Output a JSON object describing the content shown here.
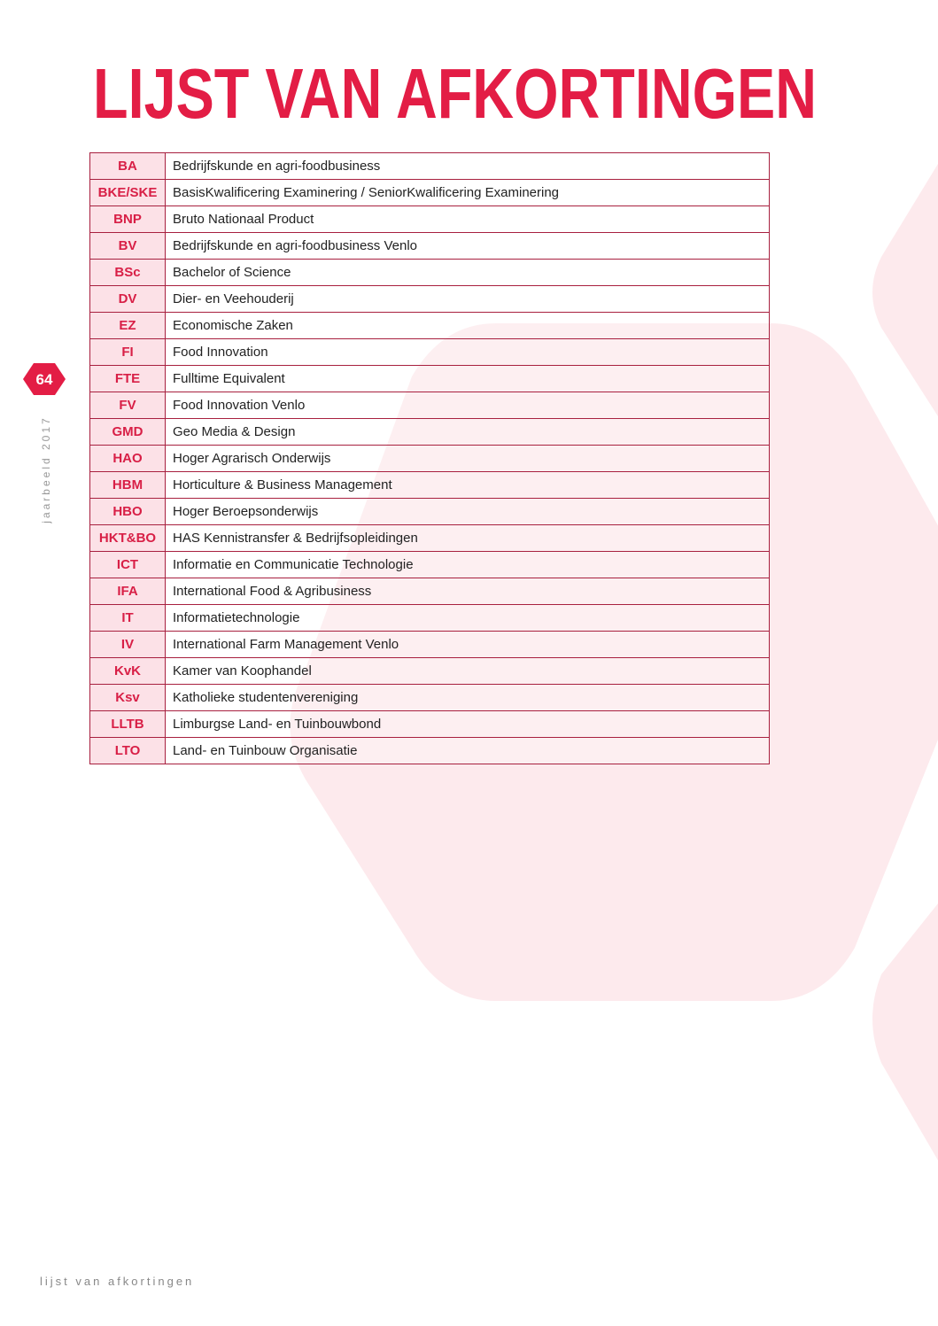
{
  "header": {
    "title": "LIJST VAN AFKORTINGEN"
  },
  "page_number": "64",
  "side_text": "jaarbeeld 2017",
  "footer": "lijst van afkortingen",
  "table": {
    "rows": [
      [
        "BA",
        "Bedrijfskunde en agri-foodbusiness"
      ],
      [
        "BKE/SKE",
        "BasisKwalificering Examinering / SeniorKwalificering Examinering"
      ],
      [
        "BNP",
        "Bruto Nationaal Product"
      ],
      [
        "BV",
        "Bedrijfskunde en agri-foodbusiness Venlo"
      ],
      [
        "BSc",
        "Bachelor of Science"
      ],
      [
        "DV",
        "Dier- en Veehouderij"
      ],
      [
        "EZ",
        "Economische Zaken"
      ],
      [
        "FI",
        "Food Innovation"
      ],
      [
        "FTE",
        "Fulltime Equivalent"
      ],
      [
        "FV",
        "Food Innovation Venlo"
      ],
      [
        "GMD",
        "Geo Media & Design"
      ],
      [
        "HAO",
        "Hoger Agrarisch Onderwijs"
      ],
      [
        "HBM",
        "Horticulture & Business Management"
      ],
      [
        "HBO",
        "Hoger Beroepsonderwijs"
      ],
      [
        "HKT&BO",
        "HAS Kennistransfer & Bedrijfsopleidingen"
      ],
      [
        "ICT",
        "Informatie en Communicatie Technologie"
      ],
      [
        "IFA",
        "International Food & Agribusiness"
      ],
      [
        "IT",
        "Informatietechnologie"
      ],
      [
        "IV",
        "International Farm Management Venlo"
      ],
      [
        "KvK",
        "Kamer van Koophandel"
      ],
      [
        "Ksv",
        "Katholieke studentenvereniging"
      ],
      [
        "LLTB",
        "Limburgse Land- en Tuinbouwbond"
      ],
      [
        "LTO",
        "Land- en Tuinbouw Organisatie"
      ]
    ]
  }
}
